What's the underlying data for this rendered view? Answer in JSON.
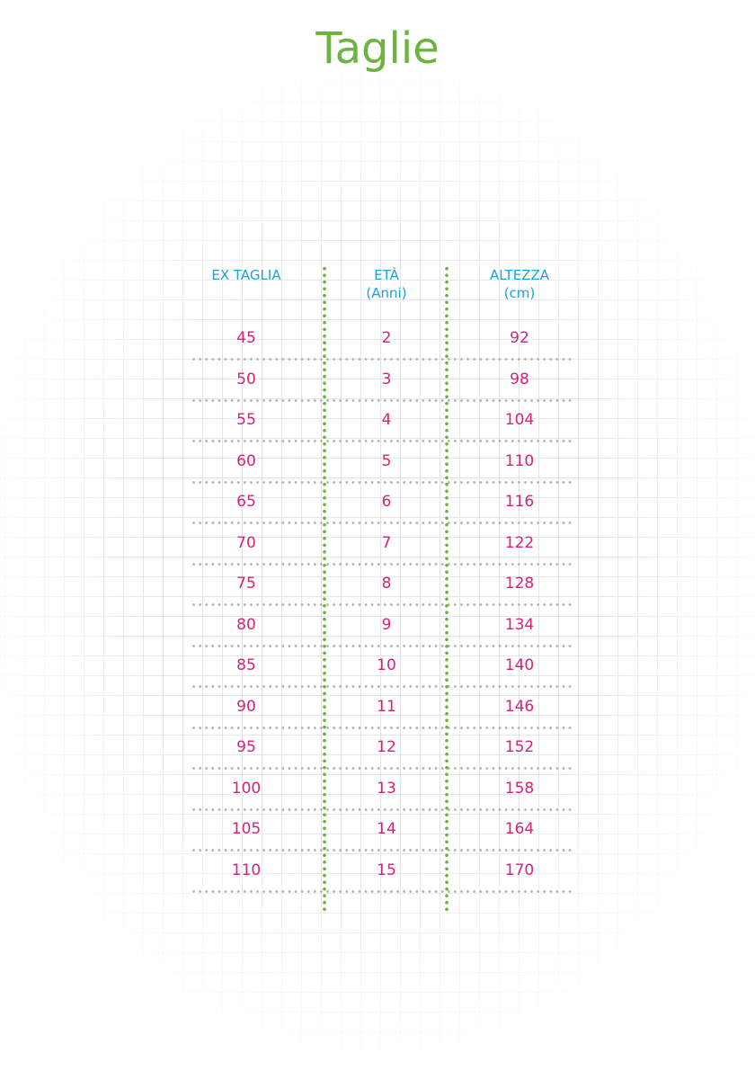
{
  "title": "Taglie",
  "headers": [
    {
      "line1": "EX TAGLIA",
      "line2": ""
    },
    {
      "line1": "ETÀ",
      "line2": "(Anni)"
    },
    {
      "line1": "ALTEZZA",
      "line2": "(cm)"
    }
  ],
  "rows": [
    [
      "45",
      "2",
      "92"
    ],
    [
      "50",
      "3",
      "98"
    ],
    [
      "55",
      "4",
      "104"
    ],
    [
      "60",
      "5",
      "110"
    ],
    [
      "65",
      "6",
      "116"
    ],
    [
      "70",
      "7",
      "122"
    ],
    [
      "75",
      "8",
      "128"
    ],
    [
      "80",
      "9",
      "134"
    ],
    [
      "85",
      "10",
      "140"
    ],
    [
      "90",
      "11",
      "146"
    ],
    [
      "95",
      "12",
      "152"
    ],
    [
      "100",
      "13",
      "158"
    ],
    [
      "105",
      "14",
      "164"
    ],
    [
      "110",
      "15",
      "170"
    ]
  ],
  "colors": {
    "title": "#6cb33f",
    "header": "#1aa3d6",
    "values": "#d4237a",
    "column_divider": "#6cb33f",
    "row_divider": "#b5b5b5"
  }
}
